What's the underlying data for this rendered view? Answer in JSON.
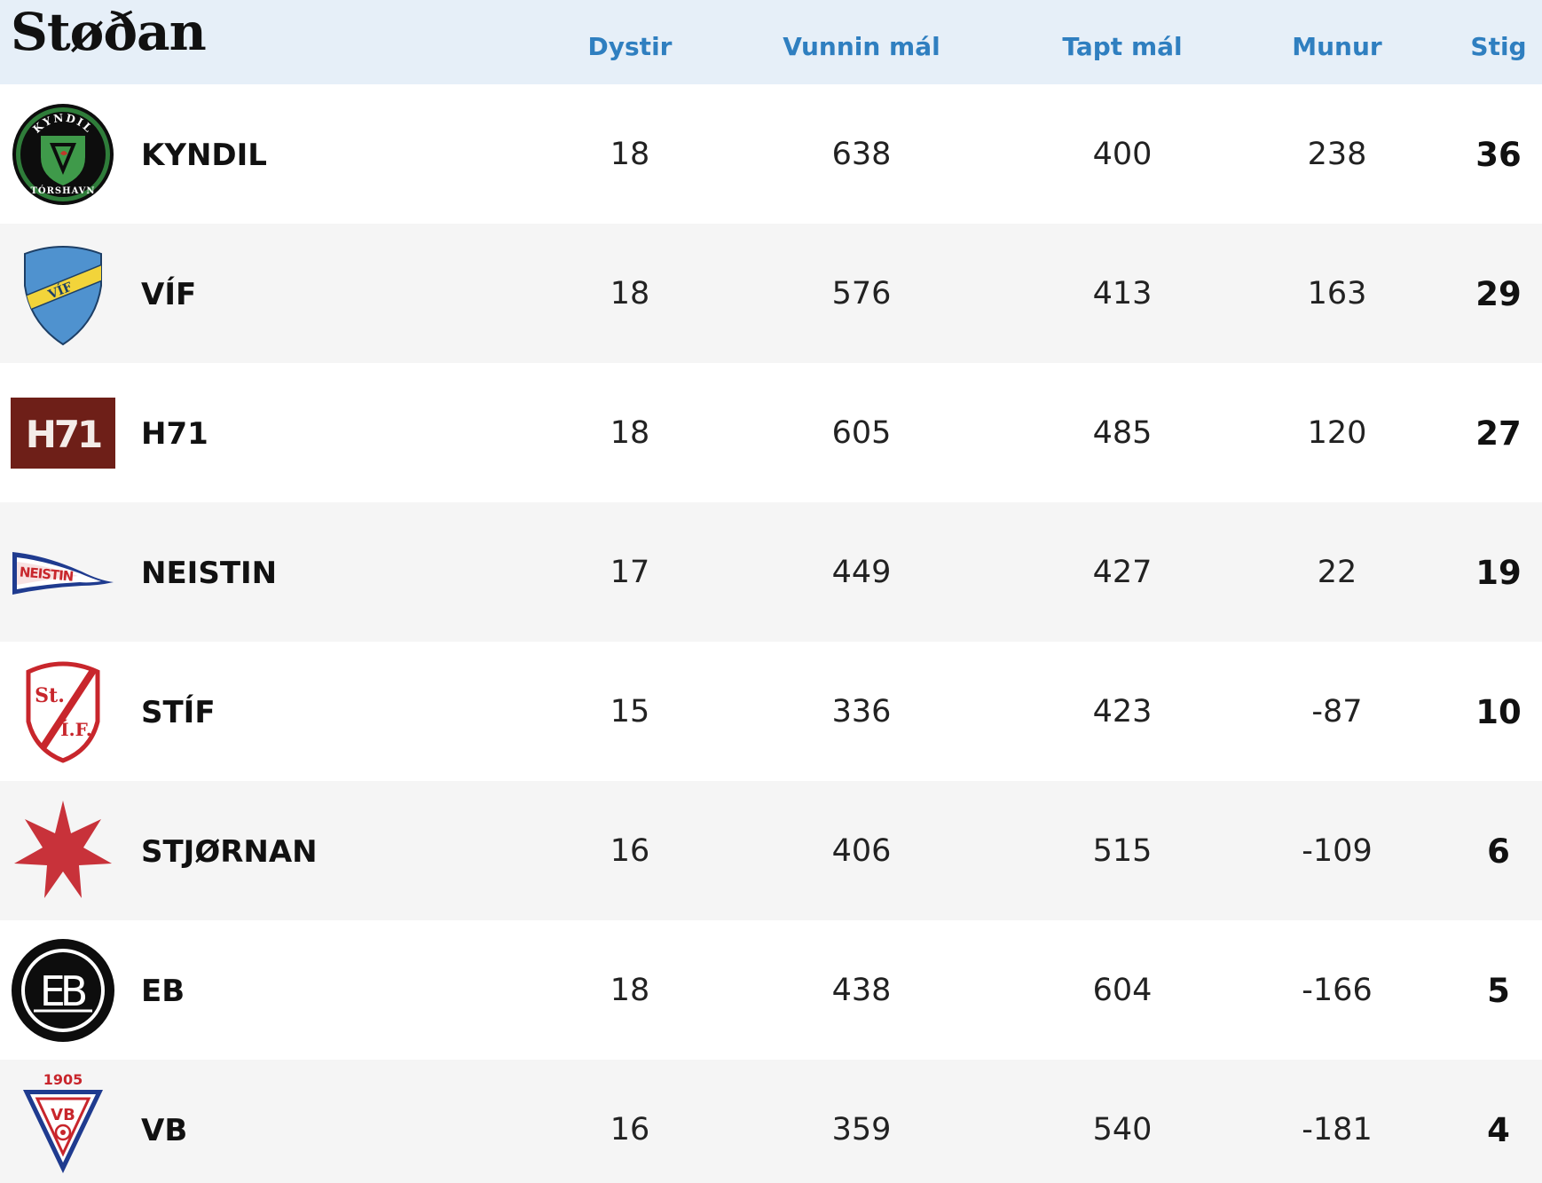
{
  "table": {
    "title": "Støðan",
    "columns": [
      "Dystir",
      "Vunnin mál",
      "Tapt mál",
      "Munur",
      "Stig"
    ],
    "rows": [
      {
        "team": "KYNDIL",
        "logo": "kyndil-crest-icon",
        "logo_text": [
          "KYNDIL",
          "TÓRSHAVN"
        ],
        "played": "18",
        "won": "638",
        "lost": "400",
        "diff": "238",
        "points": "36"
      },
      {
        "team": "VÍF",
        "logo": "vif-shield-icon",
        "logo_text": [
          "VÍF"
        ],
        "played": "18",
        "won": "576",
        "lost": "413",
        "diff": "163",
        "points": "29"
      },
      {
        "team": "H71",
        "logo": "h71-logo-icon",
        "logo_text": [
          "H71"
        ],
        "played": "18",
        "won": "605",
        "lost": "485",
        "diff": "120",
        "points": "27"
      },
      {
        "team": "NEISTIN",
        "logo": "neistin-pennant-icon",
        "logo_text": [
          "NEISTIN"
        ],
        "played": "17",
        "won": "449",
        "lost": "427",
        "diff": "22",
        "points": "19"
      },
      {
        "team": "STÍF",
        "logo": "stif-shield-icon",
        "logo_text": [
          "St.",
          "Í.F."
        ],
        "played": "15",
        "won": "336",
        "lost": "423",
        "diff": "-87",
        "points": "10"
      },
      {
        "team": "STJØRNAN",
        "logo": "star-icon",
        "logo_text": [],
        "played": "16",
        "won": "406",
        "lost": "515",
        "diff": "-109",
        "points": "6"
      },
      {
        "team": "EB",
        "logo": "eb-circle-icon",
        "logo_text": [
          "EB"
        ],
        "played": "18",
        "won": "438",
        "lost": "604",
        "diff": "-166",
        "points": "5"
      },
      {
        "team": "VB",
        "logo": "vb-crest-icon",
        "logo_text": [
          "1905",
          "VB"
        ],
        "played": "16",
        "won": "359",
        "lost": "540",
        "diff": "-181",
        "points": "4"
      }
    ]
  },
  "colors": {
    "header_bg": "#e6eff8",
    "header_text": "#2f7fc0",
    "row_alt_bg": "#f5f5f5"
  }
}
